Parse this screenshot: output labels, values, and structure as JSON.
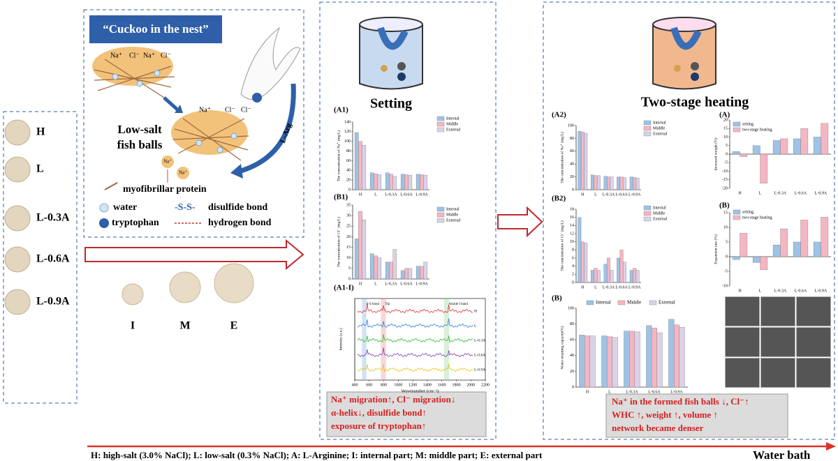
{
  "samples": {
    "labels": [
      "H",
      "L",
      "L-0.3A",
      "L-0.6A",
      "L-0.9A"
    ]
  },
  "concept": {
    "title": "“Cuckoo in the nest”",
    "fish_ball_lines": [
      "Low-salt",
      "fish balls"
    ],
    "ions": {
      "na": "Na⁺",
      "cl": "Cl⁻"
    },
    "l_arg": "L-Arg",
    "legend": [
      "myofibrillar protein",
      "water",
      "-S-S-",
      "disulfide bond",
      "tryptophan",
      "hydrogen bond"
    ],
    "parts": [
      "I",
      "M",
      "E"
    ]
  },
  "setting": {
    "title": "Setting",
    "conclusion": [
      "Na⁺ migration↑, Cl⁻ migration↓",
      "α-helix↓, disulfide bond↑",
      "exposure of tryptophan↑"
    ]
  },
  "heating": {
    "title": "Two-stage heating",
    "conclusion": [
      "Na⁺ in the formed fish balls ↓, Cl⁻↑",
      "WHC ↑, weight ↑, volume ↑",
      "network became denser"
    ]
  },
  "footer": {
    "legend": "H: high-salt (3.0% NaCl); L: low-salt (0.3% NaCl); A: L-Arginine; I: internal part; M: middle part; E: external part",
    "process": "Water bath"
  },
  "chart_data": [
    {
      "type": "bar",
      "label": "(A1)",
      "ylabel": "The concentration of Na⁺ (mg/L)",
      "categories": [
        "H",
        "L",
        "L-0.3A",
        "L-0.6A",
        "L-0.9A"
      ],
      "series": [
        {
          "name": "Internal",
          "color": "#9dc3e6",
          "values": [
            118,
            35,
            35,
            32,
            32
          ]
        },
        {
          "name": "Middle",
          "color": "#f4b6c2",
          "values": [
            100,
            33,
            32,
            31,
            31
          ]
        },
        {
          "name": "External",
          "color": "#d9d2e9",
          "values": [
            92,
            31,
            28,
            30,
            30
          ]
        }
      ],
      "ylim": [
        0,
        140
      ],
      "yticks": [
        0,
        20,
        40,
        60,
        80,
        100,
        120,
        140
      ]
    },
    {
      "type": "bar",
      "label": "(B1)",
      "ylabel": "The concentration of Cl⁻ (mg/L)",
      "categories": [
        "H",
        "L",
        "L-0.3A",
        "L-0.6A",
        "L-0.9A"
      ],
      "series": [
        {
          "name": "Internal",
          "color": "#9dc3e6",
          "values": [
            19,
            12,
            8,
            4,
            6
          ]
        },
        {
          "name": "Middle",
          "color": "#f4b6c2",
          "values": [
            32,
            11,
            8,
            5,
            6
          ]
        },
        {
          "name": "External",
          "color": "#d9d2e9",
          "values": [
            28,
            10,
            14,
            5,
            8
          ]
        }
      ],
      "ylim": [
        0,
        35
      ],
      "yticks": [
        0,
        5,
        10,
        15,
        20,
        25,
        30,
        35
      ]
    },
    {
      "type": "spectrum",
      "label": "(A1-I)",
      "xlabel": "Wavenumber (cm⁻¹)",
      "ylabel": "Intensity (a.u.)",
      "xlim": [
        400,
        2200
      ],
      "xticks": [
        400,
        600,
        800,
        1000,
        1200,
        1400,
        1600,
        1800,
        2000,
        2200
      ],
      "annotations": [
        "S-S bond",
        "Trp",
        "Amide I band"
      ],
      "line_labels": [
        "H",
        "L",
        "L-0.3A",
        "L-0.6A",
        "L-0.9A"
      ],
      "colors": [
        "#e03030",
        "#2f7fd8",
        "#2eb82e",
        "#7a3fb0",
        "#e6c21a"
      ]
    },
    {
      "type": "bar",
      "label": "(A2)",
      "ylabel": "The concentration of Na⁺ (mg/L)",
      "categories": [
        "H",
        "L",
        "L-0.3A",
        "L-0.6A",
        "L-0.9A"
      ],
      "series": [
        {
          "name": "Internal",
          "color": "#9dc3e6",
          "values": [
            91,
            23,
            21,
            20,
            20
          ]
        },
        {
          "name": "Middle",
          "color": "#f4b6c2",
          "values": [
            90,
            22,
            20,
            20,
            19
          ]
        },
        {
          "name": "External",
          "color": "#d9d2e9",
          "values": [
            88,
            22,
            20,
            19,
            18
          ]
        }
      ],
      "ylim": [
        0,
        100
      ],
      "yticks": [
        0,
        20,
        40,
        60,
        80,
        100
      ]
    },
    {
      "type": "bar",
      "label": "(B2)",
      "ylabel": "The concentration of Cl⁻ (mg/L)",
      "categories": [
        "H",
        "L",
        "L-0.3A",
        "L-0.6A",
        "L-0.9A"
      ],
      "series": [
        {
          "name": "Internal",
          "color": "#9dc3e6",
          "values": [
            16,
            3,
            4.5,
            6,
            3
          ]
        },
        {
          "name": "Middle",
          "color": "#f4b6c2",
          "values": [
            10,
            3.5,
            6,
            8,
            3.5
          ]
        },
        {
          "name": "External",
          "color": "#d9d2e9",
          "values": [
            9.7,
            3,
            3,
            5,
            3
          ]
        }
      ],
      "ylim": [
        0,
        18
      ],
      "yticks": [
        0,
        2,
        4,
        6,
        8,
        10,
        12,
        14,
        16,
        18
      ]
    },
    {
      "type": "bar",
      "label": "(B)",
      "ylabel": "Water retaining capacity(%)",
      "legend": "top",
      "categories": [
        "H",
        "L",
        "L-0.3A",
        "L-0.6A",
        "L-0.9A"
      ],
      "series": [
        {
          "name": "Internal",
          "color": "#9dc3e6",
          "values": [
            66,
            65,
            71,
            78,
            86
          ]
        },
        {
          "name": "Middle",
          "color": "#f4b6c2",
          "values": [
            65,
            64,
            71,
            75,
            79
          ]
        },
        {
          "name": "External",
          "color": "#d9d2e9",
          "values": [
            65,
            63,
            70,
            69,
            76
          ]
        }
      ],
      "ylim": [
        0,
        100
      ],
      "yticks": [
        0,
        20,
        40,
        60,
        80,
        100
      ]
    },
    {
      "type": "bar",
      "label": "(A)",
      "ylabel": "Increased weight (%)",
      "categories": [
        "H",
        "L",
        "L-0.3A",
        "L-0.6A",
        "L-0.9A"
      ],
      "series": [
        {
          "name": "setting",
          "color": "#9dc3e6",
          "values": [
            1.5,
            5,
            8,
            9,
            10
          ]
        },
        {
          "name": "two-stage heating",
          "color": "#f4b6c2",
          "values": [
            -1.5,
            -17,
            9,
            15,
            18
          ]
        }
      ],
      "ylim": [
        -20,
        20
      ],
      "yticks": [
        -20,
        -15,
        -10,
        -5,
        0,
        5,
        10,
        15,
        20
      ]
    },
    {
      "type": "bar",
      "label": "(B)",
      "ylabel": "Expansion rate (%)",
      "categories": [
        "H",
        "L",
        "L-0.3A",
        "L-0.6A",
        "L-0.9A"
      ],
      "series": [
        {
          "name": "setting",
          "color": "#9dc3e6",
          "values": [
            -1,
            -2,
            4,
            5,
            5
          ]
        },
        {
          "name": "two-stage heating",
          "color": "#f4b6c2",
          "values": [
            8,
            -4.5,
            9.5,
            12.5,
            13.5
          ]
        }
      ],
      "ylim": [
        -10,
        15
      ],
      "yticks": [
        -10,
        -5,
        0,
        5,
        10,
        15
      ]
    }
  ]
}
